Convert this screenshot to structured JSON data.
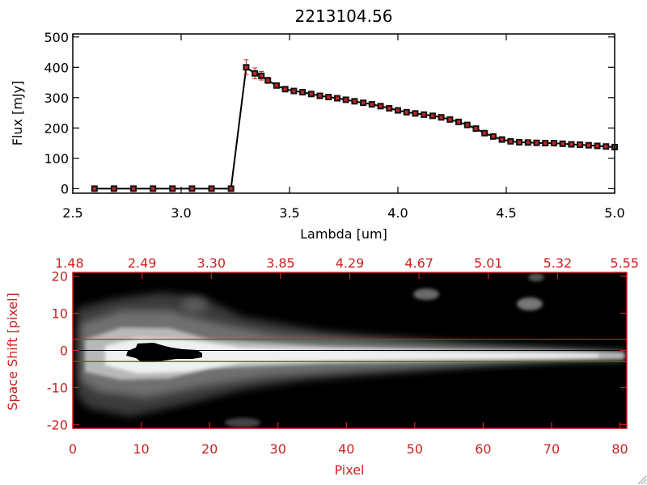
{
  "chart_data": [
    {
      "type": "line",
      "title": "2213104.56",
      "xlabel": "Lambda [um]",
      "ylabel": "Flux [mJy]",
      "xlim": [
        2.5,
        5.0
      ],
      "ylim": [
        -15,
        510
      ],
      "x_ticks": [
        "2.5",
        "3.0",
        "3.5",
        "4.0",
        "4.5",
        "5.0"
      ],
      "y_ticks": [
        "0",
        "100",
        "200",
        "300",
        "400",
        "500"
      ],
      "grid": false,
      "colors": {
        "line": "#000000",
        "marker": "#cc2222",
        "error": "#cc2222",
        "axes": "#000000"
      },
      "series": [
        {
          "x": [
            2.6,
            2.69,
            2.78,
            2.87,
            2.96,
            3.05,
            3.14,
            3.23,
            3.3,
            3.34,
            3.37,
            3.4,
            3.44,
            3.48,
            3.52,
            3.56,
            3.6,
            3.64,
            3.68,
            3.72,
            3.76,
            3.8,
            3.84,
            3.88,
            3.92,
            3.96,
            4.0,
            4.04,
            4.08,
            4.12,
            4.16,
            4.2,
            4.24,
            4.28,
            4.32,
            4.36,
            4.4,
            4.44,
            4.48,
            4.52,
            4.56,
            4.6,
            4.64,
            4.68,
            4.72,
            4.76,
            4.8,
            4.84,
            4.88,
            4.92,
            4.96,
            5.0
          ],
          "y": [
            0,
            0,
            0,
            0,
            0,
            0,
            0,
            0,
            400,
            380,
            372,
            357,
            340,
            328,
            322,
            318,
            312,
            306,
            302,
            298,
            293,
            288,
            283,
            278,
            272,
            265,
            258,
            252,
            248,
            244,
            240,
            235,
            228,
            220,
            210,
            198,
            183,
            172,
            162,
            156,
            153,
            152,
            151,
            150,
            150,
            148,
            146,
            145,
            143,
            141,
            139,
            137
          ],
          "error": [
            0,
            0,
            0,
            0,
            0,
            0,
            0,
            0,
            25,
            18,
            14,
            10,
            8,
            6,
            6,
            5,
            5,
            5,
            5,
            5,
            5,
            5,
            5,
            5,
            5,
            5,
            5,
            5,
            5,
            5,
            5,
            5,
            5,
            5,
            5,
            5,
            5,
            5,
            5,
            5,
            5,
            5,
            5,
            5,
            5,
            5,
            5,
            5,
            5,
            5,
            5,
            5
          ]
        }
      ]
    },
    {
      "type": "heatmap",
      "xlabel": "Pixel",
      "ylabel": "Space Shift [pixel]",
      "xlim": [
        0,
        81
      ],
      "ylim": [
        -21,
        21
      ],
      "x_ticks": [
        "0",
        "10",
        "20",
        "30",
        "40",
        "50",
        "60",
        "70",
        "80"
      ],
      "y_ticks": [
        "-20",
        "-10",
        "0",
        "10",
        "20"
      ],
      "top_axis_ticks": [
        "1.48",
        "2.49",
        "3.30",
        "3.85",
        "4.29",
        "4.67",
        "5.01",
        "5.32",
        "5.55"
      ],
      "guide_lines_y": [
        3,
        -3
      ],
      "colors": {
        "axes": "#cc2222",
        "guide": "#cc2222",
        "background": "#000000"
      },
      "colormap": "grayscale"
    }
  ]
}
